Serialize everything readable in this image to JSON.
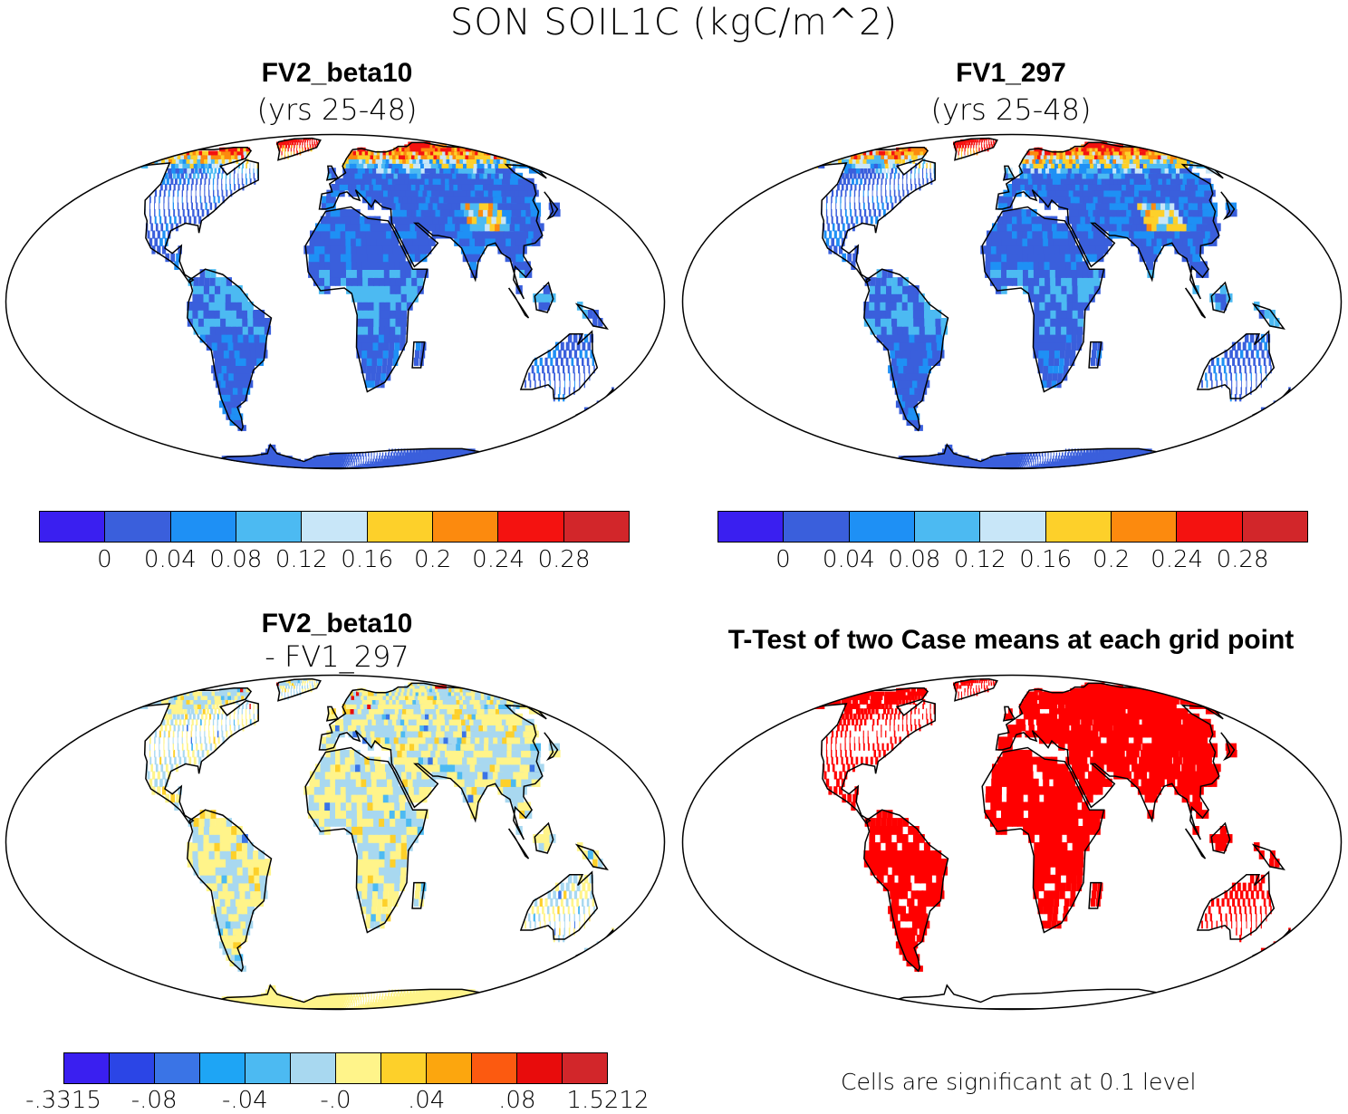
{
  "title": "SON SOIL1C (kgC/m^2)",
  "panels": [
    {
      "id": "fv2",
      "title": "FV2_beta10",
      "subtitle": "(yrs 25-48)"
    },
    {
      "id": "fv1",
      "title": "FV1_297",
      "subtitle": "(yrs 25-48)"
    },
    {
      "id": "diff",
      "title": "FV2_beta10",
      "subtitle": "- FV1_297"
    },
    {
      "id": "ttest",
      "title": "T-Test of two Case means at each grid point",
      "subtitle": ""
    }
  ],
  "colorbars": {
    "main": {
      "colors": [
        "#3a1ff0",
        "#3a5fdc",
        "#1e90f5",
        "#4cbaf2",
        "#c8e6f8",
        "#fdd02a",
        "#fc8a0e",
        "#f41210",
        "#d2262a"
      ],
      "labels": [
        "0",
        "0.04",
        "0.08",
        "0.12",
        "0.16",
        "0.2",
        "0.24",
        "0.28"
      ]
    },
    "diff": {
      "colors": [
        "#3a1ff0",
        "#2b45e6",
        "#3a74e6",
        "#1ea5f5",
        "#4cbaf2",
        "#a8d8f0",
        "#fff48a",
        "#fdd02a",
        "#fca60e",
        "#fc5a10",
        "#e80c0c",
        "#d2262a"
      ],
      "labels": [
        "-.3315",
        "-.08",
        "-.04",
        "-.0",
        ".04",
        ".08",
        "1.5212"
      ]
    }
  },
  "ttest_note": "Cells are significant at 0.1 level",
  "map_colors": {
    "ocean": "#ffffff",
    "base_fill": "#3a5fdc",
    "diff_fill": "#fff48a",
    "sig_fill": "#ff0000",
    "coast": "#000000"
  }
}
